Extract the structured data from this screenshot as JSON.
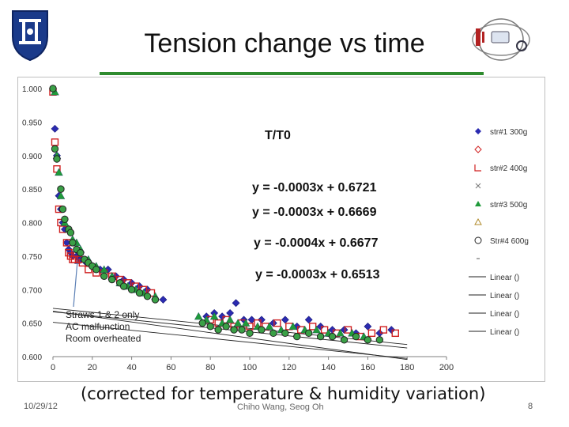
{
  "slide": {
    "title": "Tension change vs time",
    "subtitle": "(corrected for temperature & humidity variation)",
    "date": "10/29/12",
    "author": "Chiho Wang, Seog Oh",
    "page": "8"
  },
  "colors": {
    "title_rule": "#2e8b2e",
    "str1": "#2b2bb0",
    "str2": "#d02020",
    "str3": "#1f9a3a",
    "str4": "#222222",
    "axis": "#7f7f7f"
  },
  "chart_data": {
    "type": "scatter",
    "title": "T/T0",
    "xlim": [
      0,
      200
    ],
    "ylim": [
      0.6,
      1.0
    ],
    "x_ticks": [
      0,
      20,
      40,
      60,
      80,
      100,
      120,
      140,
      160,
      180,
      200
    ],
    "y_ticks": [
      "0.600",
      "0.650",
      "0.700",
      "0.750",
      "0.800",
      "0.850",
      "0.900",
      "0.950",
      "1.000"
    ],
    "grid": false,
    "legend_position": "right",
    "legend": [
      "str#1 300g",
      "",
      "str#2 400g",
      "",
      "str#3 500g",
      "",
      "Str#4 600g",
      "",
      "Linear ()",
      "Linear ()",
      "Linear ()",
      "Linear ()"
    ],
    "equations": [
      "y = -0.0003x + 0.6721",
      "y = -0.0003x + 0.6669",
      "y = -0.0004x + 0.6677",
      "y = -0.0003x + 0.6513"
    ],
    "annotation": [
      "Straws 1 & 2 only",
      "AC malfunction",
      "Room overheated"
    ],
    "trendlines": [
      {
        "x": [
          0,
          180
        ],
        "y": [
          0.6721,
          0.6181
        ]
      },
      {
        "x": [
          0,
          180
        ],
        "y": [
          0.6669,
          0.6129
        ]
      },
      {
        "x": [
          0,
          180
        ],
        "y": [
          0.6677,
          0.5957
        ]
      },
      {
        "x": [
          0,
          180
        ],
        "y": [
          0.6513,
          0.5973
        ]
      }
    ],
    "series": [
      {
        "name": "str#1 300g",
        "marker": "diamond",
        "x": [
          0,
          1,
          2,
          3,
          4,
          5,
          6,
          7,
          8,
          9,
          10,
          12,
          14,
          17,
          20,
          24,
          28,
          32,
          36,
          40,
          44,
          48,
          56,
          78,
          82,
          86,
          90,
          93,
          97,
          101,
          106,
          112,
          118,
          124,
          130,
          136,
          142,
          148,
          154,
          160,
          166,
          172
        ],
        "y": [
          1.0,
          0.94,
          0.9,
          0.84,
          0.82,
          0.8,
          0.79,
          0.77,
          0.76,
          0.755,
          0.75,
          0.75,
          0.745,
          0.74,
          0.735,
          0.73,
          0.73,
          0.72,
          0.715,
          0.71,
          0.705,
          0.7,
          0.685,
          0.66,
          0.665,
          0.66,
          0.665,
          0.68,
          0.655,
          0.655,
          0.655,
          0.65,
          0.655,
          0.645,
          0.655,
          0.645,
          0.64,
          0.64,
          0.635,
          0.645,
          0.635,
          0.64
        ]
      },
      {
        "name": "str#2 400g",
        "marker": "square-open",
        "x": [
          0,
          1,
          2,
          3,
          4,
          5,
          7,
          8,
          9,
          10,
          11,
          13,
          15,
          18,
          22,
          26,
          30,
          34,
          38,
          42,
          46,
          50,
          80,
          84,
          88,
          92,
          96,
          100,
          104,
          108,
          114,
          120,
          126,
          132,
          138,
          144,
          150,
          156,
          162,
          168,
          174
        ],
        "y": [
          0.995,
          0.92,
          0.88,
          0.82,
          0.8,
          0.79,
          0.77,
          0.755,
          0.75,
          0.745,
          0.745,
          0.745,
          0.74,
          0.73,
          0.725,
          0.725,
          0.72,
          0.715,
          0.71,
          0.705,
          0.7,
          0.695,
          0.655,
          0.65,
          0.655,
          0.645,
          0.65,
          0.645,
          0.65,
          0.645,
          0.65,
          0.645,
          0.64,
          0.645,
          0.64,
          0.635,
          0.64,
          0.63,
          0.635,
          0.64,
          0.635
        ]
      },
      {
        "name": "str#3 500g",
        "marker": "triangle",
        "x": [
          1,
          2,
          3,
          4,
          6,
          8,
          10,
          12,
          14,
          18,
          22,
          26,
          30,
          34,
          38,
          42,
          46,
          52,
          74,
          78,
          82,
          86,
          90,
          94,
          98,
          104,
          110,
          116,
          122,
          128,
          134,
          140,
          146,
          152,
          158
        ],
        "y": [
          0.995,
          0.9,
          0.875,
          0.84,
          0.8,
          0.79,
          0.775,
          0.77,
          0.76,
          0.745,
          0.735,
          0.73,
          0.72,
          0.71,
          0.705,
          0.7,
          0.695,
          0.69,
          0.66,
          0.655,
          0.66,
          0.65,
          0.655,
          0.65,
          0.65,
          0.645,
          0.645,
          0.64,
          0.645,
          0.64,
          0.64,
          0.635,
          0.635,
          0.635,
          0.63
        ]
      },
      {
        "name": "Str#4 600g",
        "marker": "circle",
        "x": [
          0,
          1,
          2,
          4,
          5,
          6,
          8,
          9,
          10,
          12,
          14,
          16,
          18,
          20,
          22,
          26,
          30,
          34,
          36,
          40,
          44,
          48,
          52,
          76,
          80,
          84,
          88,
          92,
          96,
          100,
          106,
          112,
          118,
          124,
          130,
          136,
          142,
          148,
          154,
          160,
          166
        ],
        "y": [
          1.0,
          0.91,
          0.895,
          0.85,
          0.82,
          0.805,
          0.79,
          0.785,
          0.77,
          0.76,
          0.755,
          0.745,
          0.74,
          0.735,
          0.73,
          0.72,
          0.715,
          0.71,
          0.705,
          0.7,
          0.695,
          0.69,
          0.685,
          0.65,
          0.645,
          0.64,
          0.645,
          0.64,
          0.64,
          0.635,
          0.64,
          0.635,
          0.635,
          0.63,
          0.635,
          0.63,
          0.63,
          0.625,
          0.63,
          0.625,
          0.625
        ]
      }
    ]
  }
}
